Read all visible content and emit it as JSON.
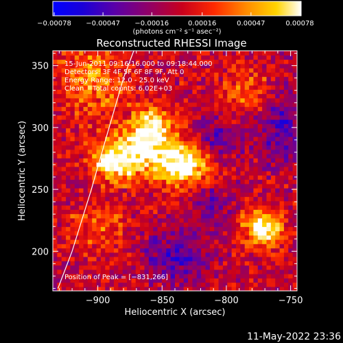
{
  "chart_data": {
    "type": "heatmap",
    "title": "Reconstructed RHESSI Image",
    "xlabel": "Heliocentric X (arcsec)",
    "ylabel": "Heliocentric Y (arcsec)",
    "xlim": [
      -935,
      -745
    ],
    "ylim": [
      168,
      362
    ],
    "x_ticks": [
      -900,
      -850,
      -800,
      -750
    ],
    "y_ticks": [
      200,
      250,
      300,
      350
    ],
    "x_tick_labels": [
      "−900",
      "−850",
      "−800",
      "−750"
    ],
    "y_tick_labels": [
      "200",
      "250",
      "300",
      "350"
    ],
    "colorbar": {
      "min": -0.00078,
      "max": 0.00078,
      "ticks": [
        -0.00078,
        -0.00047,
        -0.00016,
        0.00016,
        0.00047,
        0.00078
      ],
      "tick_labels": [
        "−0.00078",
        "−0.00047",
        "−0.00016",
        "0.00016",
        "0.00047",
        "0.00078"
      ],
      "units": "(photons cm⁻² s⁻¹ asec⁻²)"
    },
    "annotations": [
      "15-Jun-2011 09:16:16.000 to 09:18:44.000",
      "Detectors: 3F 4F 5F 6F 8F 9F, Att 0",
      "Energy Range: 12.0 - 25.0 keV",
      "Clean    Total counts: 6.02E+03"
    ],
    "peak_label": "Position of Peak = [−831,266]",
    "peak": [
      -831,
      266
    ],
    "limb_curve": [
      [
        -931,
        170
      ],
      [
        -920,
        200
      ],
      [
        -905,
        250
      ],
      [
        -894,
        290
      ],
      [
        -880,
        340
      ],
      [
        -872,
        362
      ]
    ],
    "blobs": [
      {
        "x": -865,
        "y": 282,
        "sx": 22,
        "sy": 14,
        "amp": 0.00075
      },
      {
        "x": -830,
        "y": 268,
        "sx": 16,
        "sy": 12,
        "amp": 0.0007
      },
      {
        "x": -888,
        "y": 270,
        "sx": 12,
        "sy": 10,
        "amp": 0.00055
      },
      {
        "x": -858,
        "y": 305,
        "sx": 10,
        "sy": 10,
        "amp": 0.0006
      },
      {
        "x": -905,
        "y": 340,
        "sx": 18,
        "sy": 20,
        "amp": 0.00045
      },
      {
        "x": -775,
        "y": 222,
        "sx": 10,
        "sy": 10,
        "amp": 0.0006
      },
      {
        "x": -765,
        "y": 215,
        "sx": 8,
        "sy": 8,
        "amp": 0.0005
      },
      {
        "x": -900,
        "y": 220,
        "sx": 16,
        "sy": 14,
        "amp": 0.0003
      },
      {
        "x": -785,
        "y": 330,
        "sx": 14,
        "sy": 16,
        "amp": 0.0003
      },
      {
        "x": -840,
        "y": 195,
        "sx": 18,
        "sy": 14,
        "amp": -0.00045
      },
      {
        "x": -805,
        "y": 290,
        "sx": 12,
        "sy": 12,
        "amp": -0.0004
      },
      {
        "x": -755,
        "y": 300,
        "sx": 14,
        "sy": 20,
        "amp": -0.0004
      },
      {
        "x": -810,
        "y": 240,
        "sx": 12,
        "sy": 14,
        "amp": -0.0003
      }
    ]
  },
  "footer": {
    "timestamp": "11-May-2022 23:36"
  }
}
